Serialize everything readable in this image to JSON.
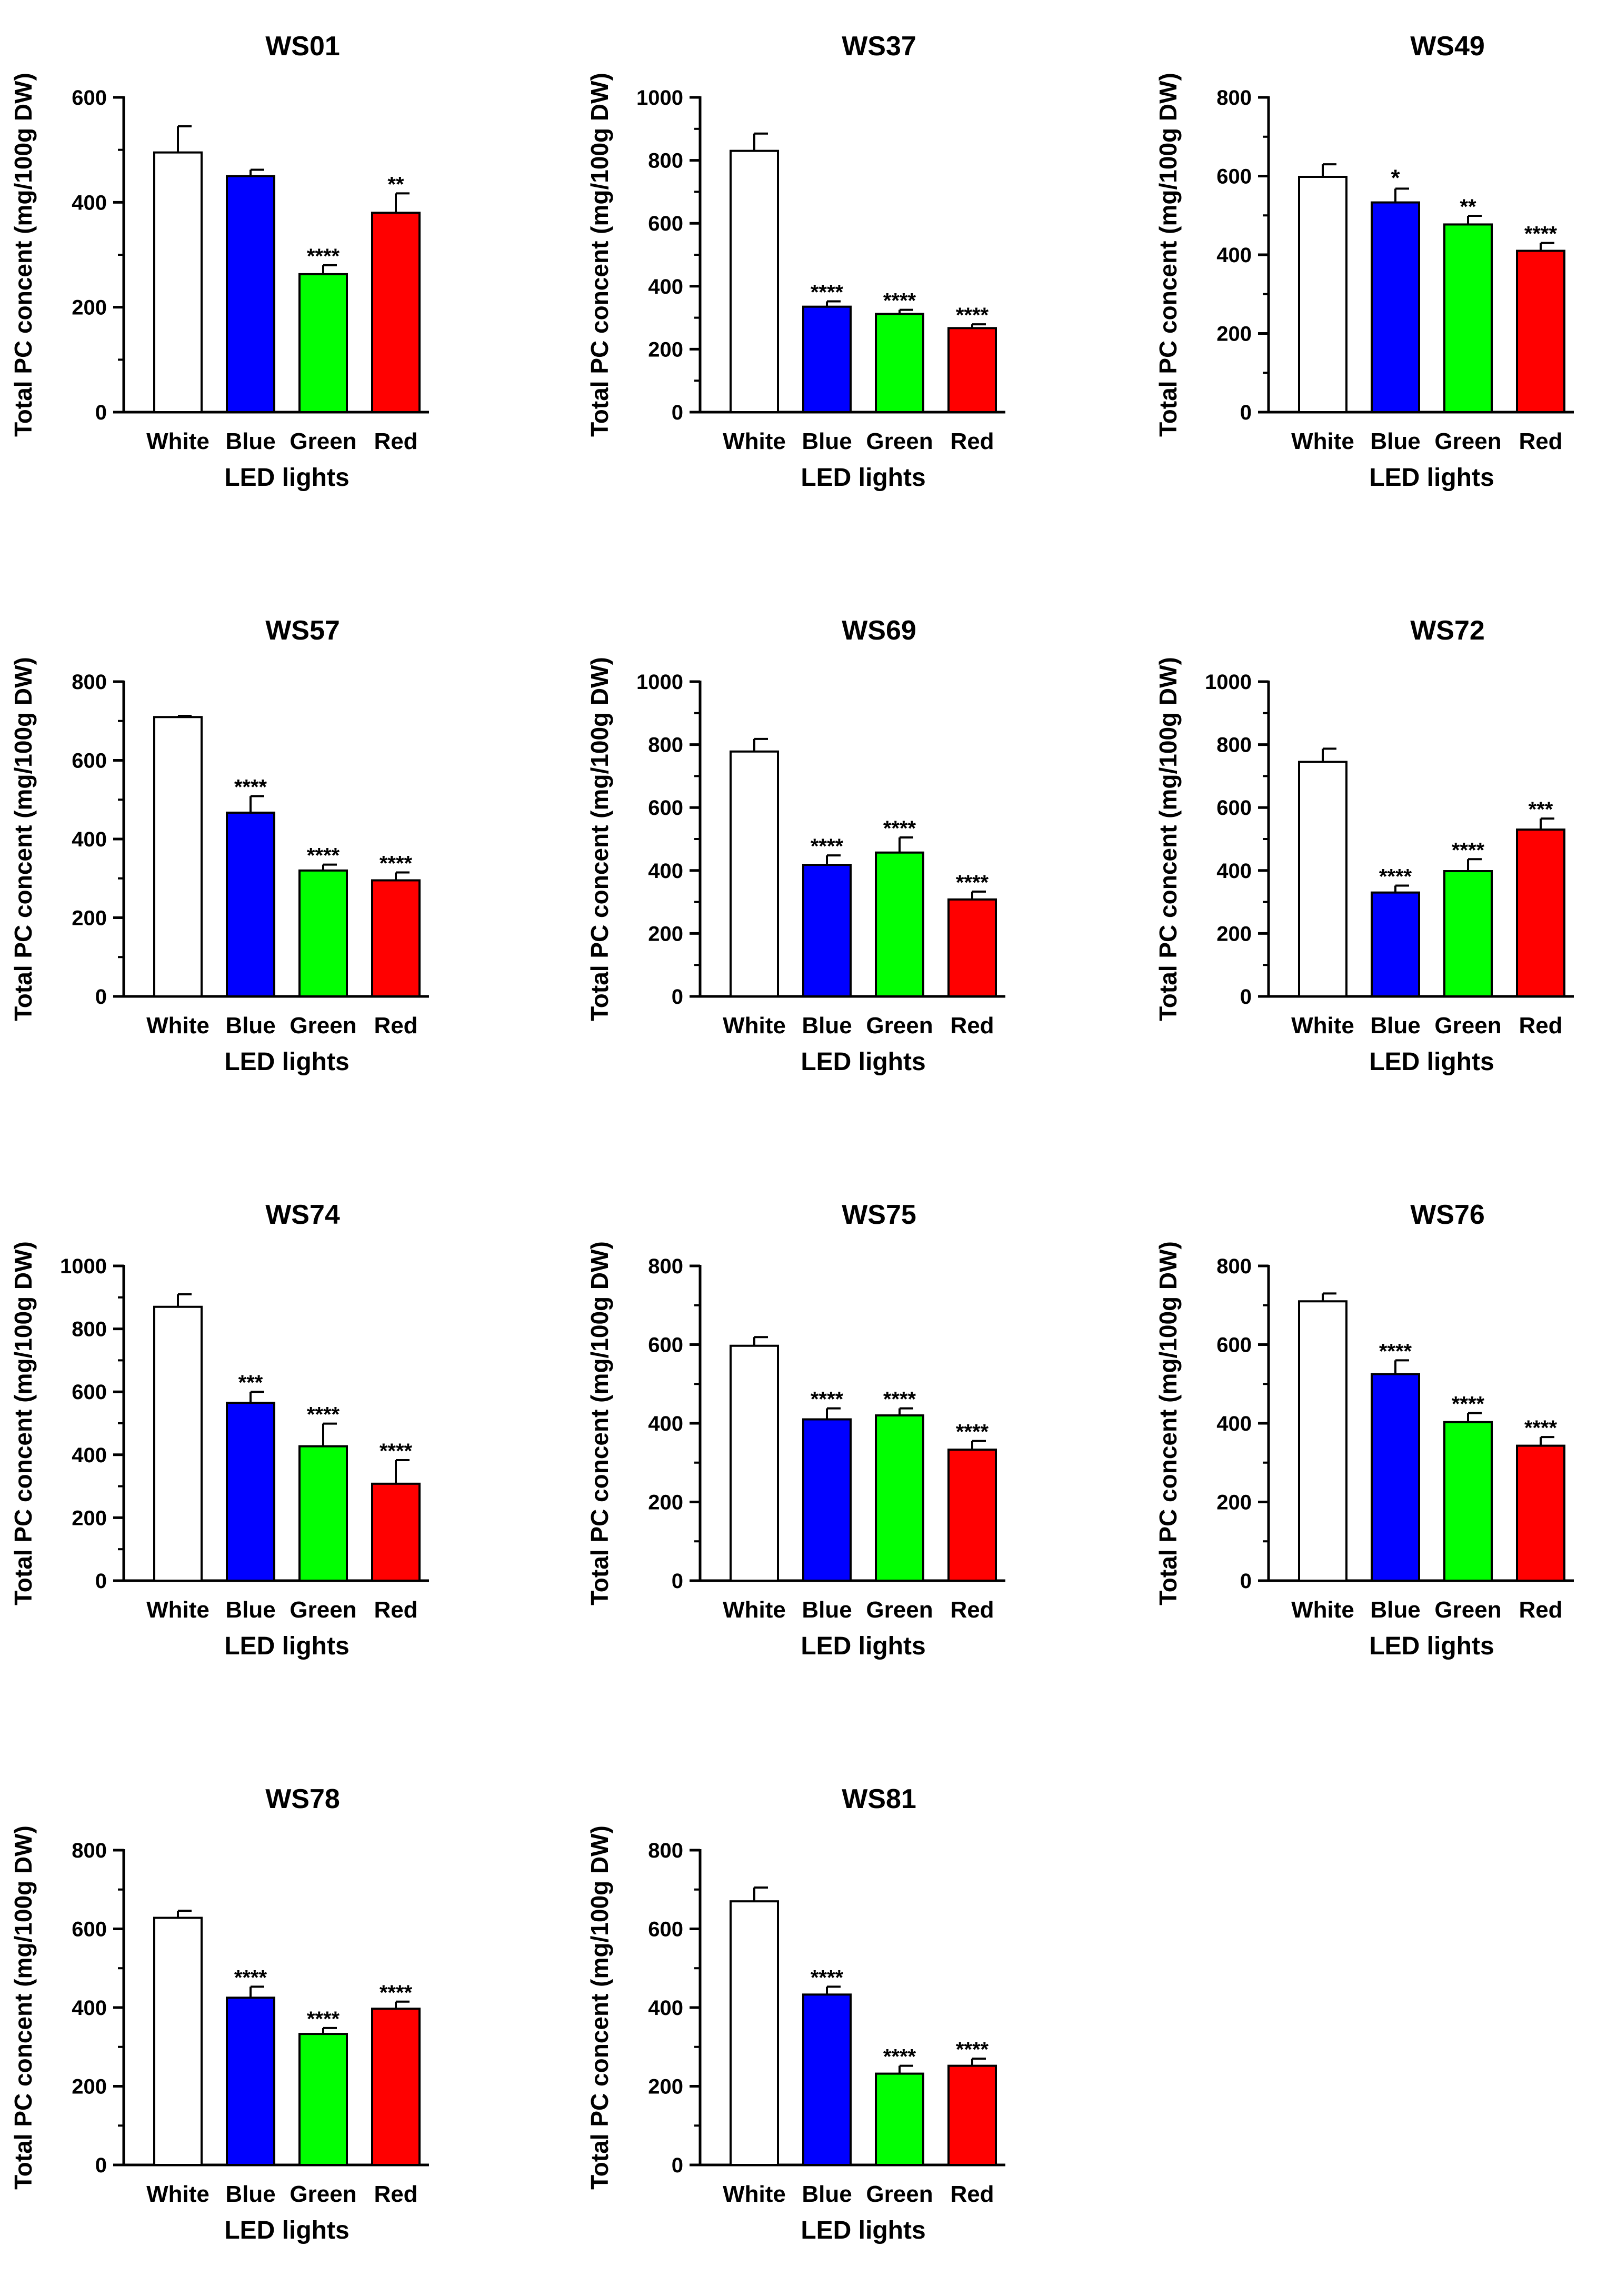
{
  "colors": {
    "White": "#ffffff",
    "Blue": "#0000ff",
    "Green": "#00ff00",
    "Red": "#ff0000",
    "axis": "#000000"
  },
  "chart_data": [
    {
      "type": "bar",
      "title": "WS01",
      "xlabel": "LED lights",
      "ylabel": "Total PC concent (mg/100g DW)",
      "categories": [
        "White",
        "Blue",
        "Green",
        "Red"
      ],
      "values": [
        495,
        450,
        263,
        380
      ],
      "errors": [
        50,
        12,
        17,
        37
      ],
      "significance": [
        "",
        "",
        "****",
        "**"
      ],
      "ylim": [
        0,
        600
      ],
      "yticks": [
        0,
        200,
        400,
        600
      ],
      "yminor": [
        100,
        300,
        500
      ]
    },
    {
      "type": "bar",
      "title": "WS37",
      "xlabel": "LED lights",
      "ylabel": "Total PC concent (mg/100g DW)",
      "categories": [
        "White",
        "Blue",
        "Green",
        "Red"
      ],
      "values": [
        830,
        335,
        312,
        267
      ],
      "errors": [
        55,
        17,
        13,
        12
      ],
      "significance": [
        "",
        "****",
        "****",
        "****"
      ],
      "ylim": [
        0,
        1000
      ],
      "yticks": [
        0,
        200,
        400,
        600,
        800,
        1000
      ],
      "yminor": [
        100,
        300,
        500,
        700,
        900
      ]
    },
    {
      "type": "bar",
      "title": "WS49",
      "xlabel": "LED lights",
      "ylabel": "Total PC concent (mg/100g DW)",
      "categories": [
        "White",
        "Blue",
        "Green",
        "Red"
      ],
      "values": [
        598,
        533,
        477,
        410
      ],
      "errors": [
        32,
        35,
        22,
        20
      ],
      "significance": [
        "",
        "*",
        "**",
        "****"
      ],
      "ylim": [
        0,
        800
      ],
      "yticks": [
        0,
        200,
        400,
        600,
        800
      ],
      "yminor": [
        100,
        300,
        500,
        700
      ]
    },
    {
      "type": "bar",
      "title": "WS57",
      "xlabel": "LED lights",
      "ylabel": "Total PC concent (mg/100g DW)",
      "categories": [
        "White",
        "Blue",
        "Green",
        "Red"
      ],
      "values": [
        710,
        467,
        320,
        295
      ],
      "errors": [
        3,
        42,
        15,
        20
      ],
      "significance": [
        "",
        "****",
        "****",
        "****"
      ],
      "ylim": [
        0,
        800
      ],
      "yticks": [
        0,
        200,
        400,
        600,
        800
      ],
      "yminor": [
        100,
        300,
        500,
        700
      ]
    },
    {
      "type": "bar",
      "title": "WS69",
      "xlabel": "LED lights",
      "ylabel": "Total PC concent (mg/100g DW)",
      "categories": [
        "White",
        "Blue",
        "Green",
        "Red"
      ],
      "values": [
        778,
        418,
        457,
        308
      ],
      "errors": [
        40,
        30,
        48,
        25
      ],
      "significance": [
        "",
        "****",
        "****",
        "****"
      ],
      "ylim": [
        0,
        1000
      ],
      "yticks": [
        0,
        200,
        400,
        600,
        800,
        1000
      ],
      "yminor": [
        100,
        300,
        500,
        700,
        900
      ]
    },
    {
      "type": "bar",
      "title": "WS72",
      "xlabel": "LED lights",
      "ylabel": "Total PC concent (mg/100g DW)",
      "categories": [
        "White",
        "Blue",
        "Green",
        "Red"
      ],
      "values": [
        745,
        330,
        398,
        530
      ],
      "errors": [
        42,
        22,
        38,
        35
      ],
      "significance": [
        "",
        "****",
        "****",
        "***"
      ],
      "ylim": [
        0,
        1000
      ],
      "yticks": [
        0,
        200,
        400,
        600,
        800,
        1000
      ],
      "yminor": [
        100,
        300,
        500,
        700,
        900
      ]
    },
    {
      "type": "bar",
      "title": "WS74",
      "xlabel": "LED lights",
      "ylabel": "Total PC concent (mg/100g DW)",
      "categories": [
        "White",
        "Blue",
        "Green",
        "Red"
      ],
      "values": [
        870,
        565,
        427,
        308
      ],
      "errors": [
        40,
        35,
        72,
        75
      ],
      "significance": [
        "",
        "***",
        "****",
        "****"
      ],
      "ylim": [
        0,
        1000
      ],
      "yticks": [
        0,
        200,
        400,
        600,
        800,
        1000
      ],
      "yminor": [
        100,
        300,
        500,
        700,
        900
      ]
    },
    {
      "type": "bar",
      "title": "WS75",
      "xlabel": "LED lights",
      "ylabel": "Total PC concent (mg/100g DW)",
      "categories": [
        "White",
        "Blue",
        "Green",
        "Red"
      ],
      "values": [
        597,
        410,
        420,
        333
      ],
      "errors": [
        22,
        28,
        18,
        22
      ],
      "significance": [
        "",
        "****",
        "****",
        "****"
      ],
      "ylim": [
        0,
        800
      ],
      "yticks": [
        0,
        200,
        400,
        600,
        800
      ],
      "yminor": [
        100,
        300,
        500,
        700
      ]
    },
    {
      "type": "bar",
      "title": "WS76",
      "xlabel": "LED lights",
      "ylabel": "Total PC concent (mg/100g DW)",
      "categories": [
        "White",
        "Blue",
        "Green",
        "Red"
      ],
      "values": [
        710,
        525,
        403,
        343
      ],
      "errors": [
        20,
        35,
        23,
        22
      ],
      "significance": [
        "",
        "****",
        "****",
        "****"
      ],
      "ylim": [
        0,
        800
      ],
      "yticks": [
        0,
        200,
        400,
        600,
        800
      ],
      "yminor": [
        100,
        300,
        500,
        700
      ]
    },
    {
      "type": "bar",
      "title": "WS78",
      "xlabel": "LED lights",
      "ylabel": "Total PC concent (mg/100g DW)",
      "categories": [
        "White",
        "Blue",
        "Green",
        "Red"
      ],
      "values": [
        628,
        425,
        333,
        397
      ],
      "errors": [
        18,
        28,
        15,
        18
      ],
      "significance": [
        "",
        "****",
        "****",
        "****"
      ],
      "ylim": [
        0,
        800
      ],
      "yticks": [
        0,
        200,
        400,
        600,
        800
      ],
      "yminor": [
        100,
        300,
        500,
        700
      ]
    },
    {
      "type": "bar",
      "title": "WS81",
      "xlabel": "LED lights",
      "ylabel": "Total PC concent (mg/100g DW)",
      "categories": [
        "White",
        "Blue",
        "Green",
        "Red"
      ],
      "values": [
        670,
        433,
        232,
        252
      ],
      "errors": [
        35,
        20,
        20,
        18
      ],
      "significance": [
        "",
        "****",
        "****",
        "****"
      ],
      "ylim": [
        0,
        800
      ],
      "yticks": [
        0,
        200,
        400,
        600,
        800
      ],
      "yminor": [
        100,
        300,
        500,
        700
      ]
    }
  ]
}
